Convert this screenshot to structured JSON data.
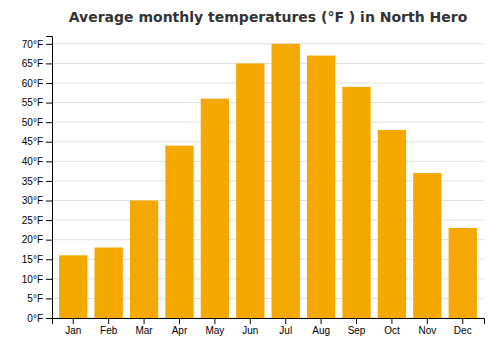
{
  "chart_data": {
    "type": "bar",
    "title": "Average monthly temperatures (°F ) in North Hero",
    "categories": [
      "Jan",
      "Feb",
      "Mar",
      "Apr",
      "May",
      "Jun",
      "Jul",
      "Aug",
      "Sep",
      "Oct",
      "Nov",
      "Dec"
    ],
    "values": [
      16,
      18,
      30,
      44,
      56,
      65,
      70,
      67,
      59,
      48,
      37,
      23
    ],
    "color": "#F5A800",
    "ylim": [
      0,
      72
    ],
    "yticks": [
      {
        "value": 0,
        "label": "0°F"
      },
      {
        "value": 5,
        "label": "5°F"
      },
      {
        "value": 10,
        "label": "10°F"
      },
      {
        "value": 15,
        "label": "15°F"
      },
      {
        "value": 20,
        "label": "20°F"
      },
      {
        "value": 25,
        "label": "25°F"
      },
      {
        "value": 30,
        "label": "30°F"
      },
      {
        "value": 35,
        "label": "35°F"
      },
      {
        "value": 40,
        "label": "40°F"
      },
      {
        "value": 45,
        "label": "45°F"
      },
      {
        "value": 50,
        "label": "50°F"
      },
      {
        "value": 55,
        "label": "55°F"
      },
      {
        "value": 60,
        "label": "60°F"
      },
      {
        "value": 65,
        "label": "65°F"
      },
      {
        "value": 70,
        "label": "70°F"
      }
    ],
    "grid": true
  }
}
